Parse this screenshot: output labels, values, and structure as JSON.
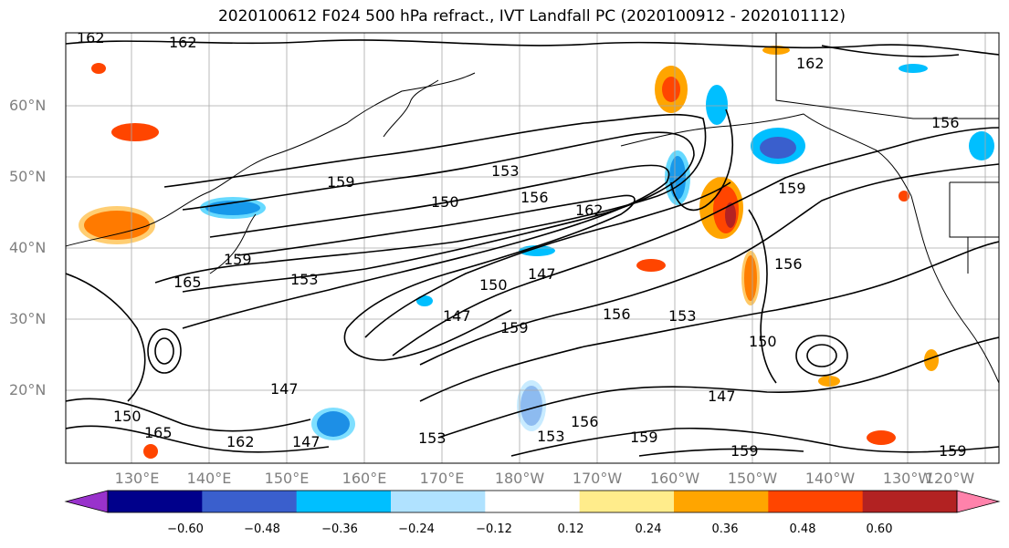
{
  "title": "2020100612 F024 500 hPa refract., IVT Landfall PC (2020100912 - 2020101112)",
  "chart_data": {
    "type": "map",
    "lat_labels": [
      "60°N",
      "50°N",
      "40°N",
      "30°N",
      "20°N"
    ],
    "lon_labels": [
      "130°E",
      "140°E",
      "150°E",
      "160°E",
      "170°E",
      "180°W",
      "170°W",
      "160°W",
      "150°W",
      "140°W",
      "130°W",
      "120°W"
    ],
    "contour_levels": [
      147,
      150,
      153,
      156,
      159,
      162,
      165
    ],
    "contour_labels": [
      {
        "text": "162"
      },
      {
        "text": "162"
      },
      {
        "text": "153"
      },
      {
        "text": "150"
      },
      {
        "text": "159"
      },
      {
        "text": "156"
      },
      {
        "text": "162"
      },
      {
        "text": "159"
      },
      {
        "text": "153"
      },
      {
        "text": "165"
      },
      {
        "text": "150"
      },
      {
        "text": "147"
      },
      {
        "text": "147"
      },
      {
        "text": "159"
      },
      {
        "text": "156"
      },
      {
        "text": "153"
      },
      {
        "text": "147"
      },
      {
        "text": "147"
      },
      {
        "text": "150"
      },
      {
        "text": "162"
      },
      {
        "text": "162"
      },
      {
        "text": "156"
      },
      {
        "text": "150"
      },
      {
        "text": "156"
      },
      {
        "text": "147"
      },
      {
        "text": "153"
      },
      {
        "text": "159"
      },
      {
        "text": "165"
      },
      {
        "text": "153"
      },
      {
        "text": "156"
      },
      {
        "text": "159"
      },
      {
        "text": "159"
      },
      {
        "text": "159"
      }
    ],
    "colorbar": {
      "ticks": [
        "−0.60",
        "−0.48",
        "−0.36",
        "−0.24",
        "−0.12",
        "0.12",
        "0.24",
        "0.36",
        "0.48",
        "0.60"
      ],
      "colors": [
        "#9932cc",
        "#00008b",
        "#3a5fcd",
        "#00bfff",
        "#b0e2ff",
        "#ffffff",
        "#ffec8b",
        "#ffa500",
        "#ff4500",
        "#b22222",
        "#ff82ab"
      ]
    }
  }
}
